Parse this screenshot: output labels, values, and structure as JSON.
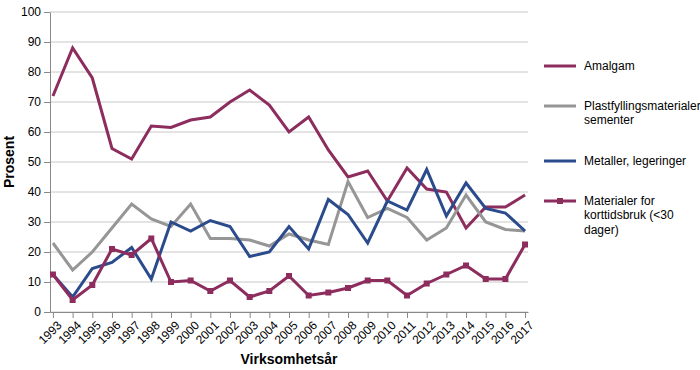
{
  "chart_data": {
    "type": "line",
    "x_label": "Virksomhetsår",
    "y_label": "Prosent",
    "categories": [
      "1993",
      "1994",
      "1995",
      "1996",
      "1997",
      "1998",
      "1999",
      "2000",
      "2001",
      "2002",
      "2003",
      "2004",
      "2005",
      "2006",
      "2007",
      "2008",
      "2009",
      "2010",
      "2011",
      "2012",
      "2013",
      "2014",
      "2015",
      "2016",
      "2017"
    ],
    "series": [
      {
        "name": "Amalgam",
        "color": "#8c2d5e",
        "line_style": "solid",
        "values": [
          72,
          88,
          78,
          54.5,
          51,
          62,
          61.5,
          64,
          65,
          70,
          74,
          69,
          60,
          65,
          54,
          45,
          47,
          37,
          48,
          41,
          40,
          28,
          35,
          35,
          39
        ]
      },
      {
        "name": "Plastfyllingsmaterialer, sementer",
        "color": "#969696",
        "line_style": "solid",
        "values": [
          23,
          14,
          20,
          28,
          36,
          31,
          28.5,
          36,
          24.5,
          24.5,
          24,
          22,
          26,
          24,
          22.5,
          43.5,
          31.5,
          34.5,
          31.5,
          24,
          28,
          39,
          30,
          27.5,
          27
        ]
      },
      {
        "name": "Metaller, legeringer",
        "color": "#2b4b8c",
        "line_style": "solid",
        "values": [
          12.5,
          5,
          14.5,
          16.5,
          21.5,
          11,
          30,
          27,
          30.5,
          28.5,
          18.5,
          20,
          28.5,
          21,
          37.5,
          32.5,
          23,
          37,
          34,
          47.5,
          32,
          43,
          34.5,
          33,
          27
        ]
      },
      {
        "name": "Materialer for korttidsbruk (<30 dager)",
        "color": "#8c2d5e",
        "line_style": "solid",
        "marker": "square",
        "values": [
          12.5,
          4,
          9,
          21,
          19,
          24.5,
          10,
          10.5,
          7,
          10.5,
          5,
          7,
          12,
          5.5,
          6.5,
          8,
          10.5,
          10.5,
          5.5,
          9.5,
          12.5,
          15.5,
          11,
          11,
          22.5
        ]
      }
    ],
    "ylim": [
      0,
      100
    ],
    "yticks": [
      0,
      10,
      20,
      30,
      40,
      50,
      60,
      70,
      80,
      90,
      100
    ],
    "grid": true,
    "legend": "right"
  }
}
